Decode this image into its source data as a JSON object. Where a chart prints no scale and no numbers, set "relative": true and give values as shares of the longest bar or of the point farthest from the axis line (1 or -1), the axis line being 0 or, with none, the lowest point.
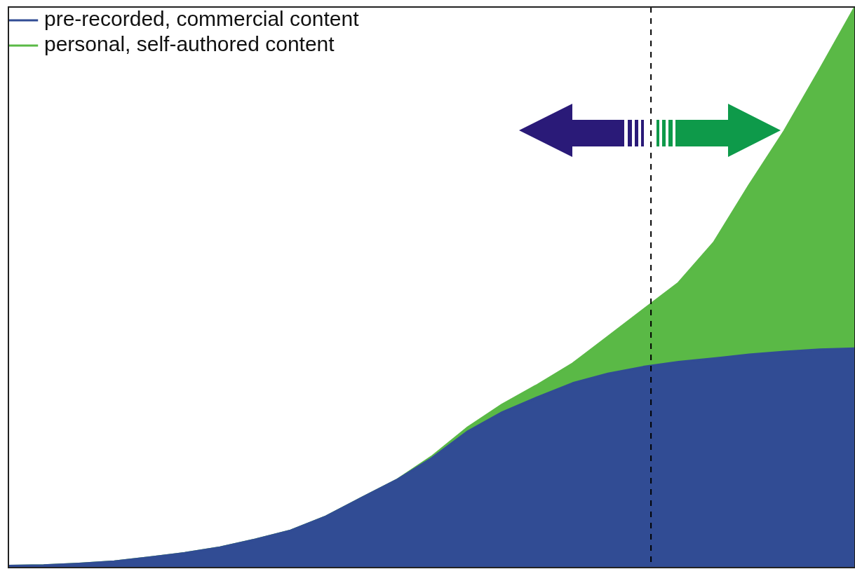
{
  "chart_data": {
    "type": "area",
    "relative": true,
    "stacked": true,
    "legend": "top left",
    "categories": [
      null,
      null,
      null,
      null,
      null,
      null,
      null,
      null,
      null,
      null,
      null,
      null,
      null,
      null,
      null,
      null,
      null,
      null,
      null,
      null,
      null,
      null,
      null,
      null,
      null
    ],
    "series": [
      {
        "name": "pre-recorded, commercial content",
        "color": "#314c94",
        "values": [
          0.003,
          0.004,
          0.007,
          0.011,
          0.018,
          0.026,
          0.036,
          0.05,
          0.066,
          0.091,
          0.124,
          0.156,
          0.195,
          0.242,
          0.277,
          0.304,
          0.329,
          0.346,
          0.358,
          0.367,
          0.373,
          0.38,
          0.385,
          0.389,
          0.391
        ]
      },
      {
        "name": "personal, self-authored content",
        "color": "#5ab946",
        "values": [
          0,
          0,
          0,
          0,
          0,
          0,
          0,
          0,
          0,
          0,
          0,
          0,
          0.003,
          0.007,
          0.014,
          0.022,
          0.035,
          0.066,
          0.102,
          0.141,
          0.207,
          0.302,
          0.394,
          0.499,
          0.609
        ]
      }
    ]
  }
}
